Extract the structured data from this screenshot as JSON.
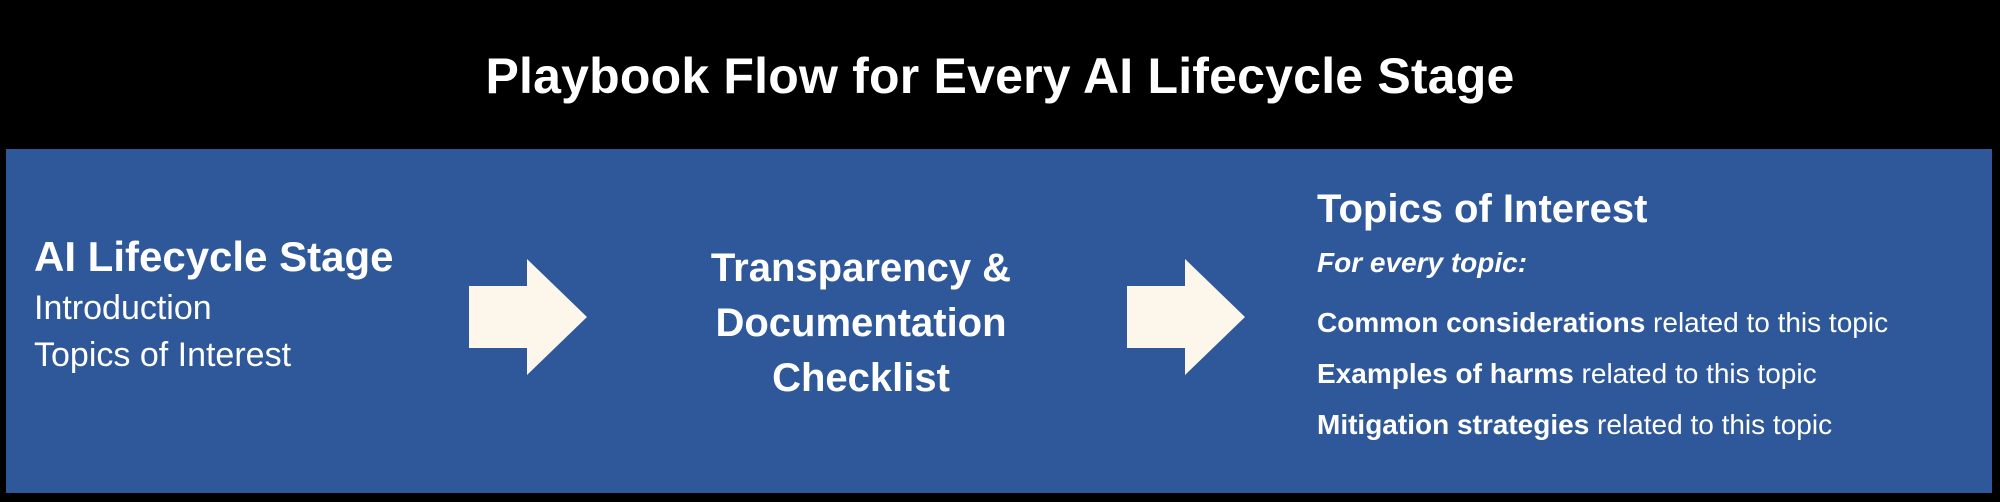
{
  "header": {
    "title": "Playbook Flow for Every AI Lifecycle Stage"
  },
  "stage": {
    "title": "AI Lifecycle Stage",
    "items": [
      "Introduction",
      "Topics of Interest"
    ]
  },
  "checklist": {
    "lines": [
      "Transparency &",
      "Documentation",
      "Checklist"
    ]
  },
  "topics": {
    "title": "Topics of Interest",
    "subtitle": "For every topic:",
    "lines": [
      {
        "bold": "Common considerations",
        "rest": " related to this topic"
      },
      {
        "bold": "Examples of harms",
        "rest": " related to this topic"
      },
      {
        "bold": "Mitigation strategies",
        "rest": " related to this topic"
      }
    ]
  },
  "colors": {
    "header_bg": "#000000",
    "panel_bg": "#2e5899",
    "arrow_fill": "#fdf6ea",
    "text": "#ffffff"
  },
  "icons": {
    "arrow": "right-arrow-icon"
  }
}
